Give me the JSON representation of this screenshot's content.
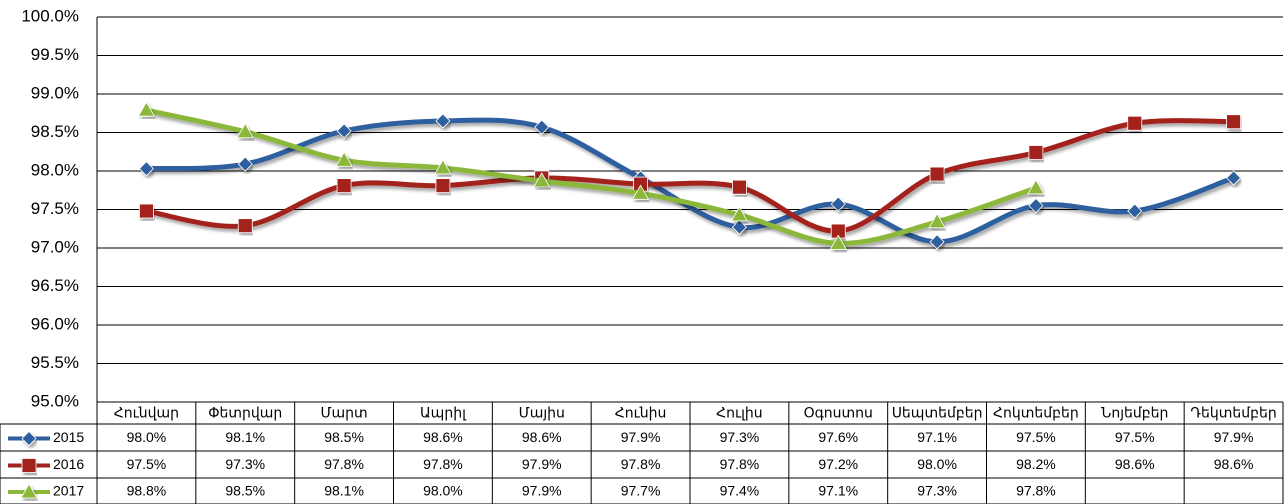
{
  "chart_data": {
    "type": "line",
    "categories": [
      "Հունվար",
      "Փետրվար",
      "Մարտ",
      "Ապրիլ",
      "Մայիս",
      "Հունիս",
      "Հուլիս",
      "Օգոստոս",
      "Սեպտեմբեր",
      "Հոկտեմբեր",
      "Նոյեմբեր",
      "Դեկտեմբեր"
    ],
    "series": [
      {
        "name": "2015",
        "color": "#2f5f9f",
        "marker": "diamond",
        "values": [
          98.03,
          98.09,
          98.52,
          98.65,
          98.57,
          97.91,
          97.27,
          97.57,
          97.08,
          97.55,
          97.48,
          97.91
        ],
        "value_labels": [
          "98.0%",
          "98.1%",
          "98.5%",
          "98.6%",
          "98.6%",
          "97.9%",
          "97.3%",
          "97.6%",
          "97.1%",
          "97.5%",
          "97.5%",
          "97.9%"
        ]
      },
      {
        "name": "2016",
        "color": "#a3221f",
        "marker": "square",
        "values": [
          97.48,
          97.29,
          97.81,
          97.81,
          97.91,
          97.83,
          97.79,
          97.22,
          97.96,
          98.24,
          98.62,
          98.64
        ],
        "value_labels": [
          "97.5%",
          "97.3%",
          "97.8%",
          "97.8%",
          "97.9%",
          "97.8%",
          "97.8%",
          "97.2%",
          "98.0%",
          "98.2%",
          "98.6%",
          "98.6%"
        ]
      },
      {
        "name": "2017",
        "color": "#8bb83a",
        "marker": "triangle",
        "values": [
          98.79,
          98.51,
          98.14,
          98.04,
          97.87,
          97.71,
          97.43,
          97.06,
          97.34,
          97.78,
          null,
          null
        ],
        "value_labels": [
          "98.8%",
          "98.5%",
          "98.1%",
          "98.0%",
          "97.9%",
          "97.7%",
          "97.4%",
          "97.1%",
          "97.3%",
          "97.8%",
          null,
          null
        ]
      }
    ],
    "ylim": [
      95.0,
      100.0
    ],
    "yticks": [
      {
        "value": 95.0,
        "label": "95.0%"
      },
      {
        "value": 95.5,
        "label": "95.5%"
      },
      {
        "value": 96.0,
        "label": "96.0%"
      },
      {
        "value": 96.5,
        "label": "96.5%"
      },
      {
        "value": 97.0,
        "label": "97.0%"
      },
      {
        "value": 97.5,
        "label": "97.5%"
      },
      {
        "value": 98.0,
        "label": "98.0%"
      },
      {
        "value": 98.5,
        "label": "98.5%"
      },
      {
        "value": 99.0,
        "label": "99.0%"
      },
      {
        "value": 99.5,
        "label": "99.5%"
      },
      {
        "value": 100.0,
        "label": "100.0%"
      }
    ],
    "grid": true,
    "data_table": true
  }
}
